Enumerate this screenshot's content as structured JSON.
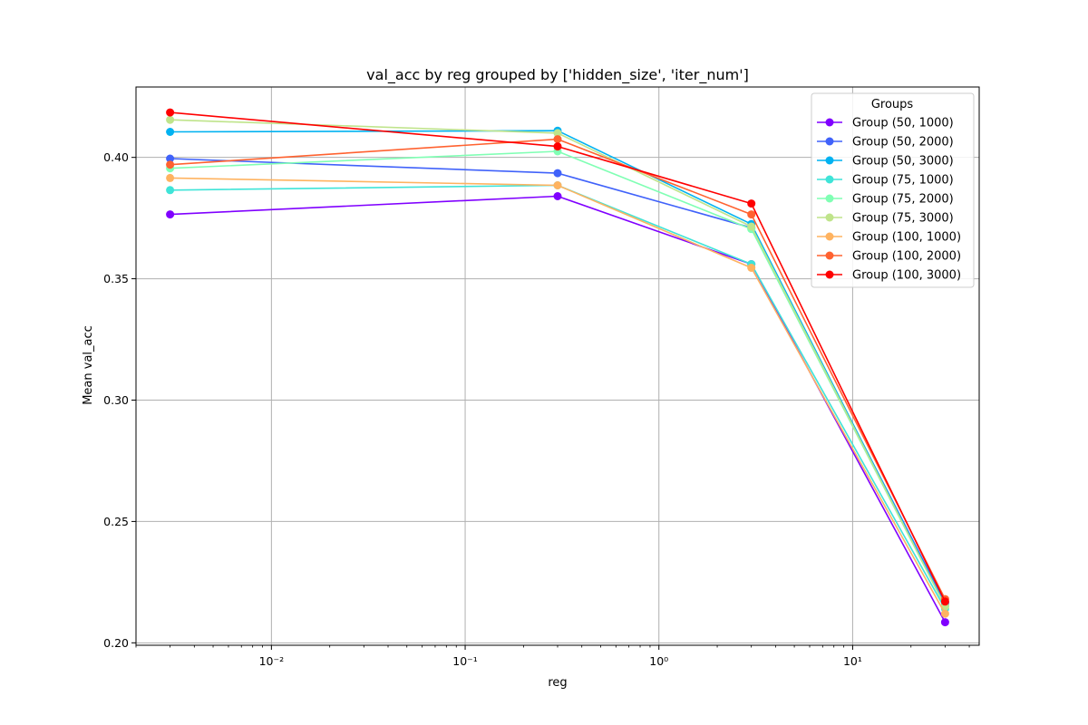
{
  "chart_data": {
    "type": "line",
    "title": "val_acc by reg grouped by ['hidden_size', 'iter_num']",
    "xlabel": "reg",
    "ylabel": "Mean val_acc",
    "xscale": "log",
    "x": [
      0.003,
      0.3,
      3,
      30
    ],
    "xlim": [
      0.002,
      45
    ],
    "ylim": [
      0.199,
      0.429
    ],
    "x_ticks": [
      {
        "value": 0.01,
        "label": "10⁻²"
      },
      {
        "value": 0.1,
        "label": "10⁻¹"
      },
      {
        "value": 1,
        "label": "10⁰"
      },
      {
        "value": 10,
        "label": "10¹"
      }
    ],
    "y_ticks": [
      {
        "value": 0.2,
        "label": "0.20"
      },
      {
        "value": 0.25,
        "label": "0.25"
      },
      {
        "value": 0.3,
        "label": "0.30"
      },
      {
        "value": 0.35,
        "label": "0.35"
      },
      {
        "value": 0.4,
        "label": "0.40"
      }
    ],
    "grid": true,
    "legend_title": "Groups",
    "legend_position": "top-right",
    "series": [
      {
        "name": "Group (50, 1000)",
        "color": "#8000ff",
        "values": [
          0.3765,
          0.384,
          0.356,
          0.2085
        ]
      },
      {
        "name": "Group (50, 2000)",
        "color": "#4062fa",
        "values": [
          0.3995,
          0.3935,
          0.371,
          0.2165
        ]
      },
      {
        "name": "Group (50, 3000)",
        "color": "#01b2f1",
        "values": [
          0.4105,
          0.411,
          0.3725,
          0.2155
        ]
      },
      {
        "name": "Group (75, 1000)",
        "color": "#3fe4d8",
        "values": [
          0.3865,
          0.3885,
          0.356,
          0.214
        ]
      },
      {
        "name": "Group (75, 2000)",
        "color": "#80ffb4",
        "values": [
          0.3955,
          0.4025,
          0.3705,
          0.215
        ]
      },
      {
        "name": "Group (75, 3000)",
        "color": "#bfe48b",
        "values": [
          0.4155,
          0.41,
          0.3715,
          0.215
        ]
      },
      {
        "name": "Group (100, 1000)",
        "color": "#ffb360",
        "values": [
          0.3915,
          0.3885,
          0.3545,
          0.212
        ]
      },
      {
        "name": "Group (100, 2000)",
        "color": "#ff6230",
        "values": [
          0.397,
          0.4075,
          0.3765,
          0.218
        ]
      },
      {
        "name": "Group (100, 3000)",
        "color": "#ff0000",
        "values": [
          0.4185,
          0.4045,
          0.381,
          0.217
        ]
      }
    ]
  }
}
